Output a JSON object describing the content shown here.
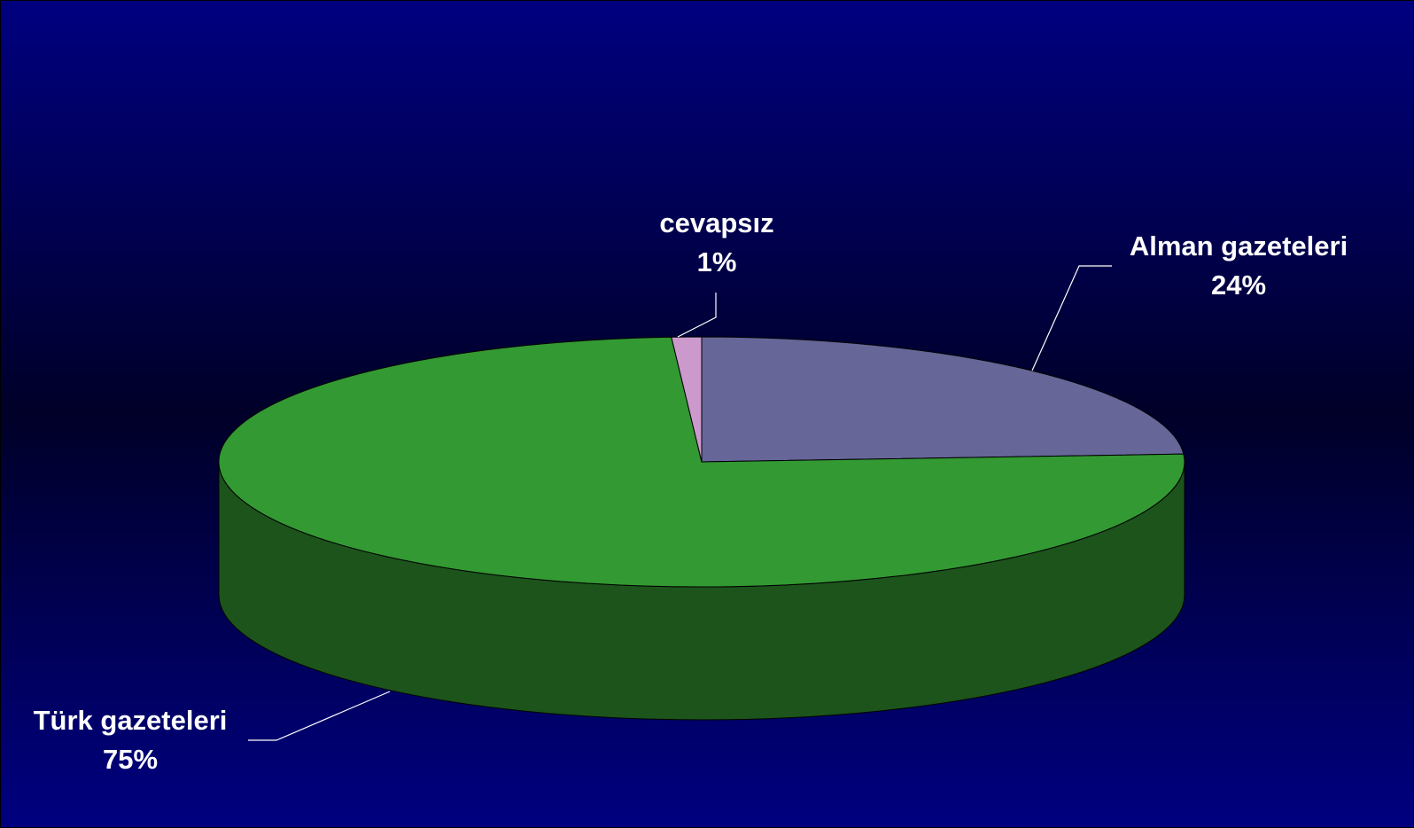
{
  "chart_data": {
    "type": "pie",
    "categories": [
      "Alman gazeteleri",
      "Türk gazeteleri",
      "cevapsız"
    ],
    "values": [
      24,
      75,
      1
    ],
    "value_labels": [
      "24%",
      "75%",
      "1%"
    ],
    "colors": [
      "#666699",
      "#339933",
      "#cc99cc"
    ]
  }
}
